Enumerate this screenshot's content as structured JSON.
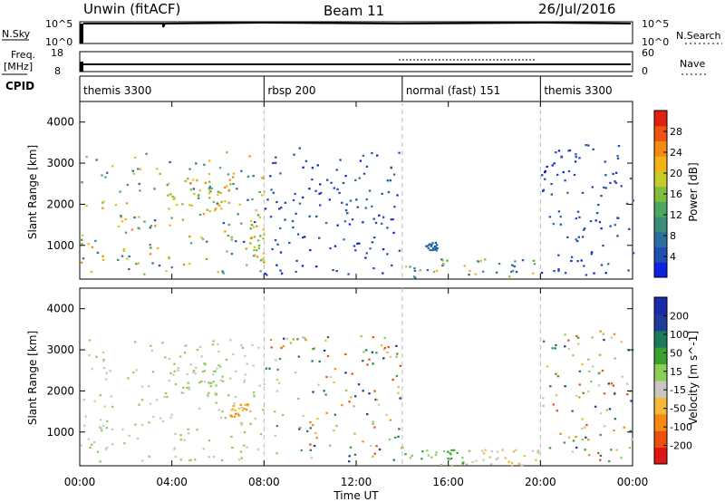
{
  "header": {
    "radar": "Unwin (fitACF)",
    "beam": "Beam 11",
    "date": "26/Jul/2016"
  },
  "panels": {
    "nsky_label": "N.Sky",
    "nsky_ticks": [
      "10^5",
      "10^0"
    ],
    "nsearch_label": "N.Search",
    "nsearch_ticks": [
      "10^5",
      "10^0"
    ],
    "freq_label_1": "Freq.",
    "freq_label_2": "[MHz]",
    "freq_ticks": [
      "18",
      "8"
    ],
    "nave_label": "Nave",
    "nave_ticks": [
      "60",
      "0"
    ],
    "cpid_label": "CPID"
  },
  "cpid_segments": [
    {
      "label": "themis 3300",
      "start": 0,
      "end": 8
    },
    {
      "label": "rbsp 200",
      "start": 8,
      "end": 14
    },
    {
      "label": "normal (fast) 151",
      "start": 14,
      "end": 20
    },
    {
      "label": "themis 3300",
      "start": 20,
      "end": 24
    }
  ],
  "chart_data": [
    {
      "type": "heatmap",
      "name": "power",
      "ylabel": "Slant Range [km]",
      "ylim": [
        180,
        4500
      ],
      "xlim": [
        0,
        24
      ],
      "yticks": [
        "4000",
        "3000",
        "2000",
        "1000"
      ],
      "colorbar": {
        "label": "Power [dB]",
        "ticks": [
          "28",
          "24",
          "20",
          "16",
          "12",
          "8",
          "4"
        ],
        "range": [
          0,
          30
        ],
        "colors": [
          "#1020e0",
          "#1f4fb0",
          "#2a6fa0",
          "#3a8e7a",
          "#4aa860",
          "#7ebe3c",
          "#c8cc2a",
          "#f2b318",
          "#f58a12",
          "#ee5510",
          "#e02010"
        ]
      },
      "regions": [
        {
          "x": [
            0.0,
            8.0
          ],
          "y": [
            300,
            3300
          ],
          "level": [
            4,
            24
          ]
        },
        {
          "x": [
            4.0,
            6.5
          ],
          "y": [
            1900,
            2700
          ],
          "level": [
            12,
            26
          ]
        },
        {
          "x": [
            7.3,
            8.0
          ],
          "y": [
            600,
            1500
          ],
          "level": [
            8,
            24
          ]
        },
        {
          "x": [
            8.0,
            14.0
          ],
          "y": [
            300,
            3400
          ],
          "level": [
            2,
            6
          ]
        },
        {
          "x": [
            14.0,
            20.0
          ],
          "y": [
            200,
            700
          ],
          "level": [
            4,
            20
          ]
        },
        {
          "x": [
            15.0,
            15.5
          ],
          "y": [
            900,
            1100
          ],
          "level": [
            4,
            8
          ]
        },
        {
          "x": [
            20.0,
            24.0
          ],
          "y": [
            300,
            3500
          ],
          "level": [
            2,
            6
          ]
        }
      ]
    },
    {
      "type": "heatmap",
      "name": "velocity",
      "ylabel": "Slant Range [km]",
      "ylim": [
        180,
        4500
      ],
      "xlim": [
        0,
        24
      ],
      "yticks": [
        "4000",
        "3000",
        "2000",
        "1000"
      ],
      "colorbar": {
        "label": "Velocity [m s^-1]",
        "ticks": [
          "200",
          "100",
          "50",
          "15",
          "-15",
          "-50",
          "-100",
          "-200"
        ],
        "range": [
          -250,
          250
        ],
        "colors": [
          "#e01515",
          "#ea5010",
          "#f48a10",
          "#f4b83a",
          "#c8c8c0",
          "#8ad058",
          "#3aa030",
          "#1a7a5a",
          "#203a9a",
          "#1a2aaa"
        ]
      },
      "regions": [
        {
          "x": [
            0.0,
            8.0
          ],
          "y": [
            300,
            3300
          ],
          "level": [
            -30,
            30
          ]
        },
        {
          "x": [
            4.0,
            6.5
          ],
          "y": [
            1900,
            2700
          ],
          "level": [
            -15,
            15
          ]
        },
        {
          "x": [
            6.5,
            7.5
          ],
          "y": [
            1400,
            1700
          ],
          "level": [
            -150,
            -60
          ]
        },
        {
          "x": [
            8.0,
            14.0
          ],
          "y": [
            300,
            3400
          ],
          "level": [
            -200,
            200
          ]
        },
        {
          "x": [
            14.0,
            17.0
          ],
          "y": [
            200,
            600
          ],
          "level": [
            20,
            80
          ]
        },
        {
          "x": [
            17.0,
            20.0
          ],
          "y": [
            200,
            600
          ],
          "level": [
            -80,
            -20
          ]
        },
        {
          "x": [
            20.0,
            24.0
          ],
          "y": [
            300,
            3500
          ],
          "level": [
            -200,
            200
          ]
        }
      ]
    }
  ],
  "xaxis": {
    "label": "Time UT",
    "ticks": [
      "00:00",
      "04:00",
      "08:00",
      "12:00",
      "16:00",
      "20:00",
      "00:00"
    ]
  }
}
